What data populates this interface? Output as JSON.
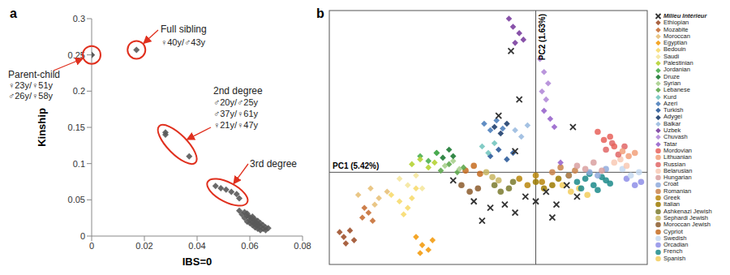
{
  "chart_data": [
    {
      "type": "scatter",
      "title": "a",
      "x_label": "IBS=0",
      "y_label": "Kinship",
      "xlim": [
        0,
        0.08
      ],
      "xticks": [
        0,
        0.02,
        0.04,
        0.06,
        0.08
      ],
      "ylim": [
        0,
        0.3
      ],
      "yticks": [
        0,
        0.05,
        0.1,
        0.15,
        0.2,
        0.25,
        0.3
      ],
      "color": "#595959",
      "marker": "diamond",
      "annotations": [
        {
          "text": "Parent-child",
          "lines": [
            "♀23y/♀51y",
            "♂26y/♀58y"
          ],
          "x": [
            0,
            0
          ],
          "y": [
            0.25,
            0.25
          ]
        },
        {
          "text": "Full sibling",
          "lines": [
            "♀40y/♂43y"
          ],
          "x": [
            0.017
          ],
          "y": [
            0.257
          ]
        },
        {
          "text": "2nd degree",
          "lines": [
            "♂20y/♂25y",
            "♂37y/♀61y",
            "♀21y/♀47y"
          ],
          "x": [
            0.028,
            0.028,
            0.037
          ],
          "y": [
            0.143,
            0.14,
            0.11
          ]
        },
        {
          "text": "3rd degree",
          "x": [
            0.047,
            0.049,
            0.051,
            0.053,
            0.055,
            0.056
          ],
          "y": [
            0.069,
            0.066,
            0.064,
            0.061,
            0.058,
            0.052
          ]
        }
      ],
      "series": [
        {
          "x": [
            0.056,
            0.057,
            0.058,
            0.058,
            0.059,
            0.059,
            0.06,
            0.06,
            0.06,
            0.061,
            0.061,
            0.061,
            0.062,
            0.062,
            0.062,
            0.063,
            0.063,
            0.063,
            0.064,
            0.064,
            0.064,
            0.065,
            0.065,
            0.066,
            0.066,
            0.067,
            0.059,
            0.061,
            0.062,
            0.063
          ],
          "y": [
            0.035,
            0.03,
            0.033,
            0.025,
            0.028,
            0.02,
            0.026,
            0.018,
            0.022,
            0.015,
            0.024,
            0.019,
            0.012,
            0.02,
            0.016,
            0.01,
            0.017,
            0.014,
            0.008,
            0.013,
            0.018,
            0.01,
            0.015,
            0.008,
            0.012,
            0.011,
            0.031,
            0.027,
            0.023,
            0.021
          ]
        }
      ]
    },
    {
      "type": "scatter",
      "title": "b",
      "x_label": "PC1 (5.42%)",
      "y_label": "PC2 (1.63%)",
      "xlim": [
        -1,
        0.54
      ],
      "ylim": [
        -0.57,
        1
      ],
      "tick_labels": false,
      "series": [
        {
          "name": "Milieu Intérieur",
          "color": "#333333",
          "marker": "x",
          "x": [
            -0.4,
            -0.3,
            -0.22,
            -0.15,
            -0.1,
            -0.05,
            0,
            0.05,
            0.1,
            0.15,
            0.2,
            -0.12,
            -0.18,
            0.18,
            -0.26,
            -0.08,
            0.08,
            -0.1
          ],
          "y": [
            -0.05,
            -0.18,
            -0.22,
            -0.2,
            -0.25,
            -0.15,
            -0.18,
            -0.12,
            -0.2,
            -0.08,
            -0.15,
            0.75,
            0.35,
            0.28,
            -0.3,
            0.45,
            -0.28,
            0.13
          ]
        },
        {
          "name": "Ethiopian",
          "color": "#a0522d",
          "marker": "diamond",
          "x": [
            -0.95,
            -0.93,
            -0.9,
            -0.88,
            -0.92
          ],
          "y": [
            -0.37,
            -0.4,
            -0.36,
            -0.42,
            -0.44
          ]
        },
        {
          "name": "Mozabite",
          "color": "#c87137",
          "marker": "diamond",
          "x": [
            -0.84,
            -0.81,
            -0.79,
            -0.83
          ],
          "y": [
            -0.28,
            -0.25,
            -0.3,
            -0.22
          ]
        },
        {
          "name": "Moroccan",
          "color": "#e8c17a",
          "marker": "diamond",
          "x": [
            -0.86,
            -0.8,
            -0.76,
            -0.72,
            -0.78
          ],
          "y": [
            -0.14,
            -0.1,
            -0.16,
            -0.12,
            -0.2
          ]
        },
        {
          "name": "Egyptian",
          "color": "#f39c12",
          "marker": "diamond",
          "x": [
            -0.58,
            -0.55,
            -0.52,
            -0.5,
            -0.56
          ],
          "y": [
            -0.4,
            -0.45,
            -0.48,
            -0.42,
            -0.5
          ]
        },
        {
          "name": "Bedouin",
          "color": "#f7dc6f",
          "marker": "diamond",
          "x": [
            -0.7,
            -0.66,
            -0.62,
            -0.58,
            -0.64,
            -0.6
          ],
          "y": [
            -0.14,
            -0.18,
            -0.22,
            -0.1,
            -0.26,
            -0.16
          ]
        },
        {
          "name": "Saudi",
          "color": "#f5e79e",
          "marker": "diamond",
          "x": [
            -0.66,
            -0.62,
            -0.58,
            -0.55
          ],
          "y": [
            -0.04,
            -0.08,
            -0.02,
            -0.1
          ]
        },
        {
          "name": "Palestinian",
          "color": "#b5d334",
          "marker": "diamond",
          "x": [
            -0.6,
            -0.56,
            -0.52,
            -0.49
          ],
          "y": [
            0.05,
            0.08,
            0.03,
            0.06
          ]
        },
        {
          "name": "Jordanian",
          "color": "#4caf50",
          "marker": "diamond",
          "x": [
            -0.56,
            -0.52,
            -0.48
          ],
          "y": [
            0.1,
            0.07,
            0.12
          ]
        },
        {
          "name": "Druze",
          "color": "#1e7b34",
          "marker": "diamond",
          "x": [
            -0.48,
            -0.45,
            -0.42,
            -0.4
          ],
          "y": [
            0.12,
            0.09,
            0.14,
            0.1
          ]
        },
        {
          "name": "Syrian",
          "color": "#a8d08d",
          "marker": "diamond",
          "x": [
            -0.44,
            -0.4,
            -0.37
          ],
          "y": [
            0.04,
            0.07,
            0.02
          ]
        },
        {
          "name": "Lebanese",
          "color": "#5fa84f",
          "marker": "diamond",
          "x": [
            -0.46,
            -0.42,
            -0.38,
            -0.35
          ],
          "y": [
            0.01,
            0.05,
            0,
            0.03
          ]
        },
        {
          "name": "Kurd",
          "color": "#76c7c0",
          "marker": "diamond",
          "x": [
            -0.26,
            -0.23,
            -0.2
          ],
          "y": [
            0.16,
            0.12,
            0.18
          ]
        },
        {
          "name": "Azeri",
          "color": "#4f81bd",
          "marker": "diamond",
          "x": [
            -0.25,
            -0.22,
            -0.19,
            -0.16
          ],
          "y": [
            0.3,
            0.26,
            0.32,
            0.27
          ]
        },
        {
          "name": "Turkish",
          "color": "#2e5c9a",
          "marker": "diamond",
          "x": [
            -0.22,
            -0.18,
            -0.14,
            -0.11
          ],
          "y": [
            0.1,
            0.14,
            0.08,
            0.12
          ]
        },
        {
          "name": "Adygei",
          "color": "#1f3f6e",
          "marker": "diamond",
          "x": [
            -0.2,
            -0.17,
            -0.14
          ],
          "y": [
            0.28,
            0.24,
            0.3
          ]
        },
        {
          "name": "Balkar",
          "color": "#9bbbe0",
          "marker": "diamond",
          "x": [
            -0.1,
            -0.07,
            -0.04
          ],
          "y": [
            0.26,
            0.22,
            0.29
          ]
        },
        {
          "name": "Uzbek",
          "color": "#7b3fa0",
          "marker": "diamond",
          "x": [
            -0.13,
            -0.11,
            -0.08,
            -0.06,
            -0.1
          ],
          "y": [
            0.95,
            0.9,
            0.86,
            0.82,
            0.8
          ]
        },
        {
          "name": "Chuvash",
          "color": "#b38bd8",
          "marker": "diamond",
          "x": [
            0.02,
            0.04,
            0.06,
            0.03,
            0.05
          ],
          "y": [
            0.7,
            0.62,
            0.55,
            0.5,
            0.45
          ]
        },
        {
          "name": "Tatar",
          "color": "#9966cc",
          "marker": "diamond",
          "x": [
            0.04,
            0.07,
            0.09,
            0.12
          ],
          "y": [
            0.38,
            0.33,
            0.28,
            0.06
          ]
        },
        {
          "name": "Mordovian",
          "color": "#e8625a",
          "marker": "circle",
          "x": [
            0.3,
            0.33,
            0.36,
            0.38
          ],
          "y": [
            0.25,
            0.2,
            0.22,
            0.16
          ]
        },
        {
          "name": "Lithuanian",
          "color": "#f2a07a",
          "marker": "circle",
          "x": [
            0.42,
            0.45,
            0.48
          ],
          "y": [
            0.13,
            0.1,
            0.12
          ]
        },
        {
          "name": "Russian",
          "color": "#e06666",
          "marker": "circle",
          "x": [
            0.34,
            0.37,
            0.4,
            0.43
          ],
          "y": [
            0.14,
            0.18,
            0.11,
            0.16
          ]
        },
        {
          "name": "Belarusian",
          "color": "#f8c9b4",
          "marker": "circle",
          "x": [
            0.38,
            0.41,
            0.44
          ],
          "y": [
            0.06,
            0.08,
            0.04
          ]
        },
        {
          "name": "Hungarian",
          "color": "#d9a0a0",
          "marker": "circle",
          "x": [
            0.2,
            0.24,
            0.28,
            0.32
          ],
          "y": [
            0.04,
            0.02,
            0.06,
            0.01
          ]
        },
        {
          "name": "Croat",
          "color": "#8faadc",
          "marker": "circle",
          "x": [
            0.26,
            0.3,
            0.34
          ],
          "y": [
            0,
            -0.02,
            0.02
          ]
        },
        {
          "name": "Romanian",
          "color": "#c9824a",
          "marker": "circle",
          "x": [
            0.08,
            0.12,
            0.16,
            0.19
          ],
          "y": [
            0,
            0.03,
            -0.02,
            0.01
          ]
        },
        {
          "name": "Greek",
          "color": "#b8860b",
          "marker": "circle",
          "x": [
            -0.08,
            -0.04,
            0,
            0.03
          ],
          "y": [
            -0.04,
            -0.08,
            -0.02,
            -0.06
          ]
        },
        {
          "name": "Italian",
          "color": "#9c7a00",
          "marker": "circle",
          "x": [
            0,
            0.04,
            0.08,
            0.11
          ],
          "y": [
            -0.06,
            -0.1,
            -0.08,
            -0.04
          ]
        },
        {
          "name": "Ashkenazi Jewish",
          "color": "#7a7a2e",
          "marker": "circle",
          "x": [
            -0.2,
            -0.17,
            -0.13,
            -0.11
          ],
          "y": [
            -0.08,
            -0.12,
            -0.1,
            -0.06
          ]
        },
        {
          "name": "Sephardi Jewish",
          "color": "#c8b560",
          "marker": "circle",
          "x": [
            -0.24,
            -0.21,
            -0.18
          ],
          "y": [
            0,
            -0.03,
            -0.05
          ]
        },
        {
          "name": "Moroccan Jewish",
          "color": "#8b5a2b",
          "marker": "circle",
          "x": [
            -0.36,
            -0.32,
            -0.28
          ],
          "y": [
            -0.08,
            -0.12,
            -0.1
          ]
        },
        {
          "name": "Cypriot",
          "color": "#c56b1e",
          "marker": "circle",
          "x": [
            -0.34,
            -0.3,
            -0.27
          ],
          "y": [
            0.01,
            0.04,
            -0.01
          ]
        },
        {
          "name": "Swedish",
          "color": "#c5d9f1",
          "marker": "circle",
          "x": [
            0.42,
            0.46,
            0.5
          ],
          "y": [
            0.02,
            -0.02,
            0
          ]
        },
        {
          "name": "Orcadian",
          "color": "#8e8ee8",
          "marker": "circle",
          "x": [
            0.44,
            0.48,
            0.51
          ],
          "y": [
            -0.04,
            -0.08,
            -0.06
          ]
        },
        {
          "name": "French",
          "color": "#1b8a8a",
          "marker": "circle",
          "x": [
            0.16,
            0.2,
            0.24,
            0.28,
            0.32,
            0.36,
            0.22,
            0.3,
            0.26,
            0.34
          ],
          "y": [
            -0.02,
            -0.06,
            -0.04,
            -0.08,
            -0.03,
            -0.07,
            -0.1,
            -0.11,
            -0.01,
            -0.05
          ]
        },
        {
          "name": "Spanish",
          "color": "#f2cd5c",
          "marker": "circle",
          "x": [
            0.13,
            0.17,
            0.21,
            0.25
          ],
          "y": [
            -0.08,
            -0.12,
            -0.1,
            -0.14
          ]
        }
      ]
    }
  ]
}
